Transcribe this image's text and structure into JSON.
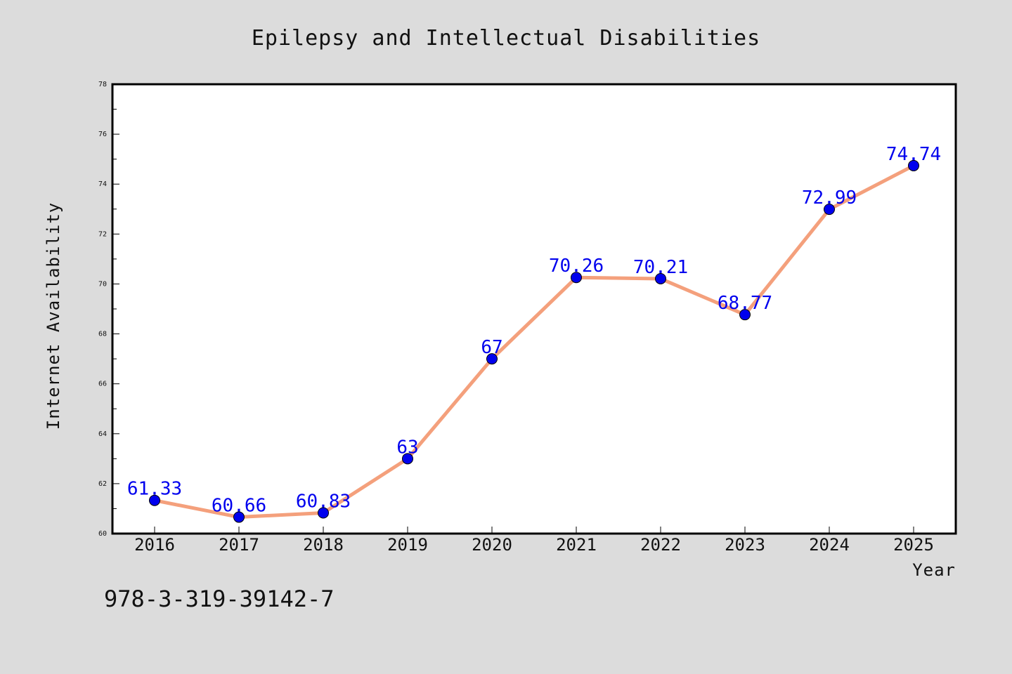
{
  "chart_data": {
    "type": "line",
    "title": "Epilepsy and Intellectual Disabilities",
    "xlabel": "Year",
    "ylabel": "Internet Availability",
    "categories": [
      "2016",
      "2017",
      "2018",
      "2019",
      "2020",
      "2021",
      "2022",
      "2023",
      "2024",
      "2025"
    ],
    "series": [
      {
        "values": [
          61.33,
          60.66,
          60.83,
          63,
          67,
          70.26,
          70.21,
          68.77,
          72.99,
          74.74
        ],
        "labels": [
          "61.33",
          "60.66",
          "60.83",
          "63",
          "67",
          "70.26",
          "70.21",
          "68.77",
          "72.99",
          "74.74"
        ],
        "line_color": "#f4a07c",
        "marker_color": "#0000ee"
      }
    ],
    "ylim": [
      60,
      78
    ],
    "yticks": [
      "60",
      "62",
      "64",
      "66",
      "68",
      "70",
      "72",
      "74",
      "76",
      "78"
    ],
    "grid": false,
    "legend": "none"
  },
  "annotation": "978-3-319-39142-7",
  "colors": {
    "background": "#dcdcdc",
    "plot_background": "#ffffff",
    "label": "#0000ee"
  }
}
